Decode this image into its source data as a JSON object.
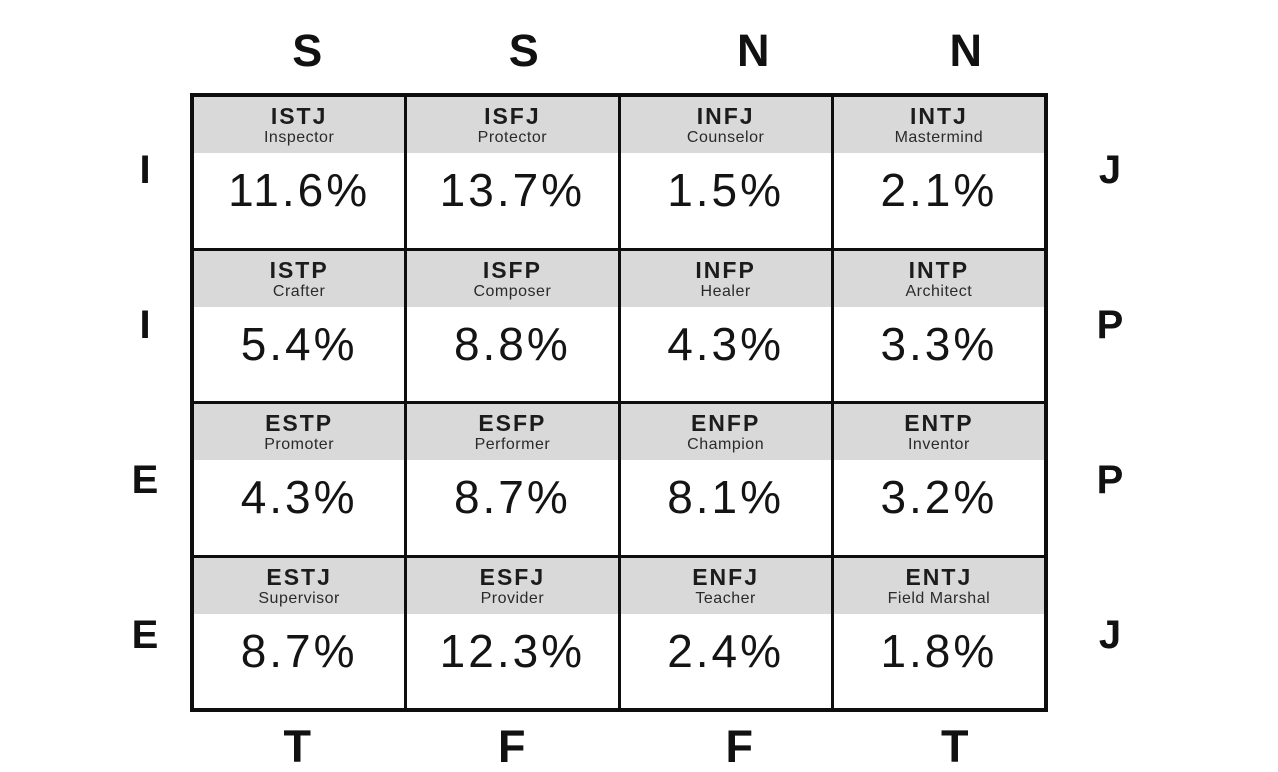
{
  "colors": {
    "background": "#ffffff",
    "grid_border": "#0e0e0e",
    "header_band": "#d9d9d9",
    "text": "#1a1a1a"
  },
  "axis": {
    "top": [
      "S",
      "S",
      "N",
      "N"
    ],
    "bottom": [
      "T",
      "F",
      "F",
      "T"
    ],
    "left": [
      "I",
      "I",
      "E",
      "E"
    ],
    "right": [
      "J",
      "P",
      "P",
      "J"
    ]
  },
  "grid": {
    "rows": [
      {
        "cells": [
          {
            "code": "ISTJ",
            "name": "Inspector",
            "pct": "11.6%"
          },
          {
            "code": "ISFJ",
            "name": "Protector",
            "pct": "13.7%"
          },
          {
            "code": "INFJ",
            "name": "Counselor",
            "pct": "1.5%"
          },
          {
            "code": "INTJ",
            "name": "Mastermind",
            "pct": "2.1%"
          }
        ]
      },
      {
        "cells": [
          {
            "code": "ISTP",
            "name": "Crafter",
            "pct": "5.4%"
          },
          {
            "code": "ISFP",
            "name": "Composer",
            "pct": "8.8%"
          },
          {
            "code": "INFP",
            "name": "Healer",
            "pct": "4.3%"
          },
          {
            "code": "INTP",
            "name": "Architect",
            "pct": "3.3%"
          }
        ]
      },
      {
        "cells": [
          {
            "code": "ESTP",
            "name": "Promoter",
            "pct": "4.3%"
          },
          {
            "code": "ESFP",
            "name": "Performer",
            "pct": "8.7%"
          },
          {
            "code": "ENFP",
            "name": "Champion",
            "pct": "8.1%"
          },
          {
            "code": "ENTP",
            "name": "Inventor",
            "pct": "3.2%"
          }
        ]
      },
      {
        "cells": [
          {
            "code": "ESTJ",
            "name": "Supervisor",
            "pct": "8.7%"
          },
          {
            "code": "ESFJ",
            "name": "Provider",
            "pct": "12.3%"
          },
          {
            "code": "ENFJ",
            "name": "Teacher",
            "pct": "2.4%"
          },
          {
            "code": "ENTJ",
            "name": "Field Marshal",
            "pct": "1.8%"
          }
        ]
      }
    ]
  },
  "chart_data": {
    "type": "table",
    "description_axes": {
      "top_axis_per_column": [
        "S",
        "S",
        "N",
        "N"
      ],
      "bottom_axis_per_column": [
        "T",
        "F",
        "F",
        "T"
      ],
      "left_axis_per_row": [
        "I",
        "I",
        "E",
        "E"
      ],
      "right_axis_per_row": [
        "J",
        "P",
        "P",
        "J"
      ]
    },
    "cells": [
      [
        {
          "type": "ISTJ",
          "nickname": "Inspector",
          "percent": 11.6
        },
        {
          "type": "ISFJ",
          "nickname": "Protector",
          "percent": 13.7
        },
        {
          "type": "INFJ",
          "nickname": "Counselor",
          "percent": 1.5
        },
        {
          "type": "INTJ",
          "nickname": "Mastermind",
          "percent": 2.1
        }
      ],
      [
        {
          "type": "ISTP",
          "nickname": "Crafter",
          "percent": 5.4
        },
        {
          "type": "ISFP",
          "nickname": "Composer",
          "percent": 8.8
        },
        {
          "type": "INFP",
          "nickname": "Healer",
          "percent": 4.3
        },
        {
          "type": "INTP",
          "nickname": "Architect",
          "percent": 3.3
        }
      ],
      [
        {
          "type": "ESTP",
          "nickname": "Promoter",
          "percent": 4.3
        },
        {
          "type": "ESFP",
          "nickname": "Performer",
          "percent": 8.7
        },
        {
          "type": "ENFP",
          "nickname": "Champion",
          "percent": 8.1
        },
        {
          "type": "ENTP",
          "nickname": "Inventor",
          "percent": 3.2
        }
      ],
      [
        {
          "type": "ESTJ",
          "nickname": "Supervisor",
          "percent": 8.7
        },
        {
          "type": "ESFJ",
          "nickname": "Provider",
          "percent": 12.3
        },
        {
          "type": "ENFJ",
          "nickname": "Teacher",
          "percent": 2.4
        },
        {
          "type": "ENTJ",
          "nickname": "Field Marshal",
          "percent": 1.8
        }
      ]
    ]
  }
}
